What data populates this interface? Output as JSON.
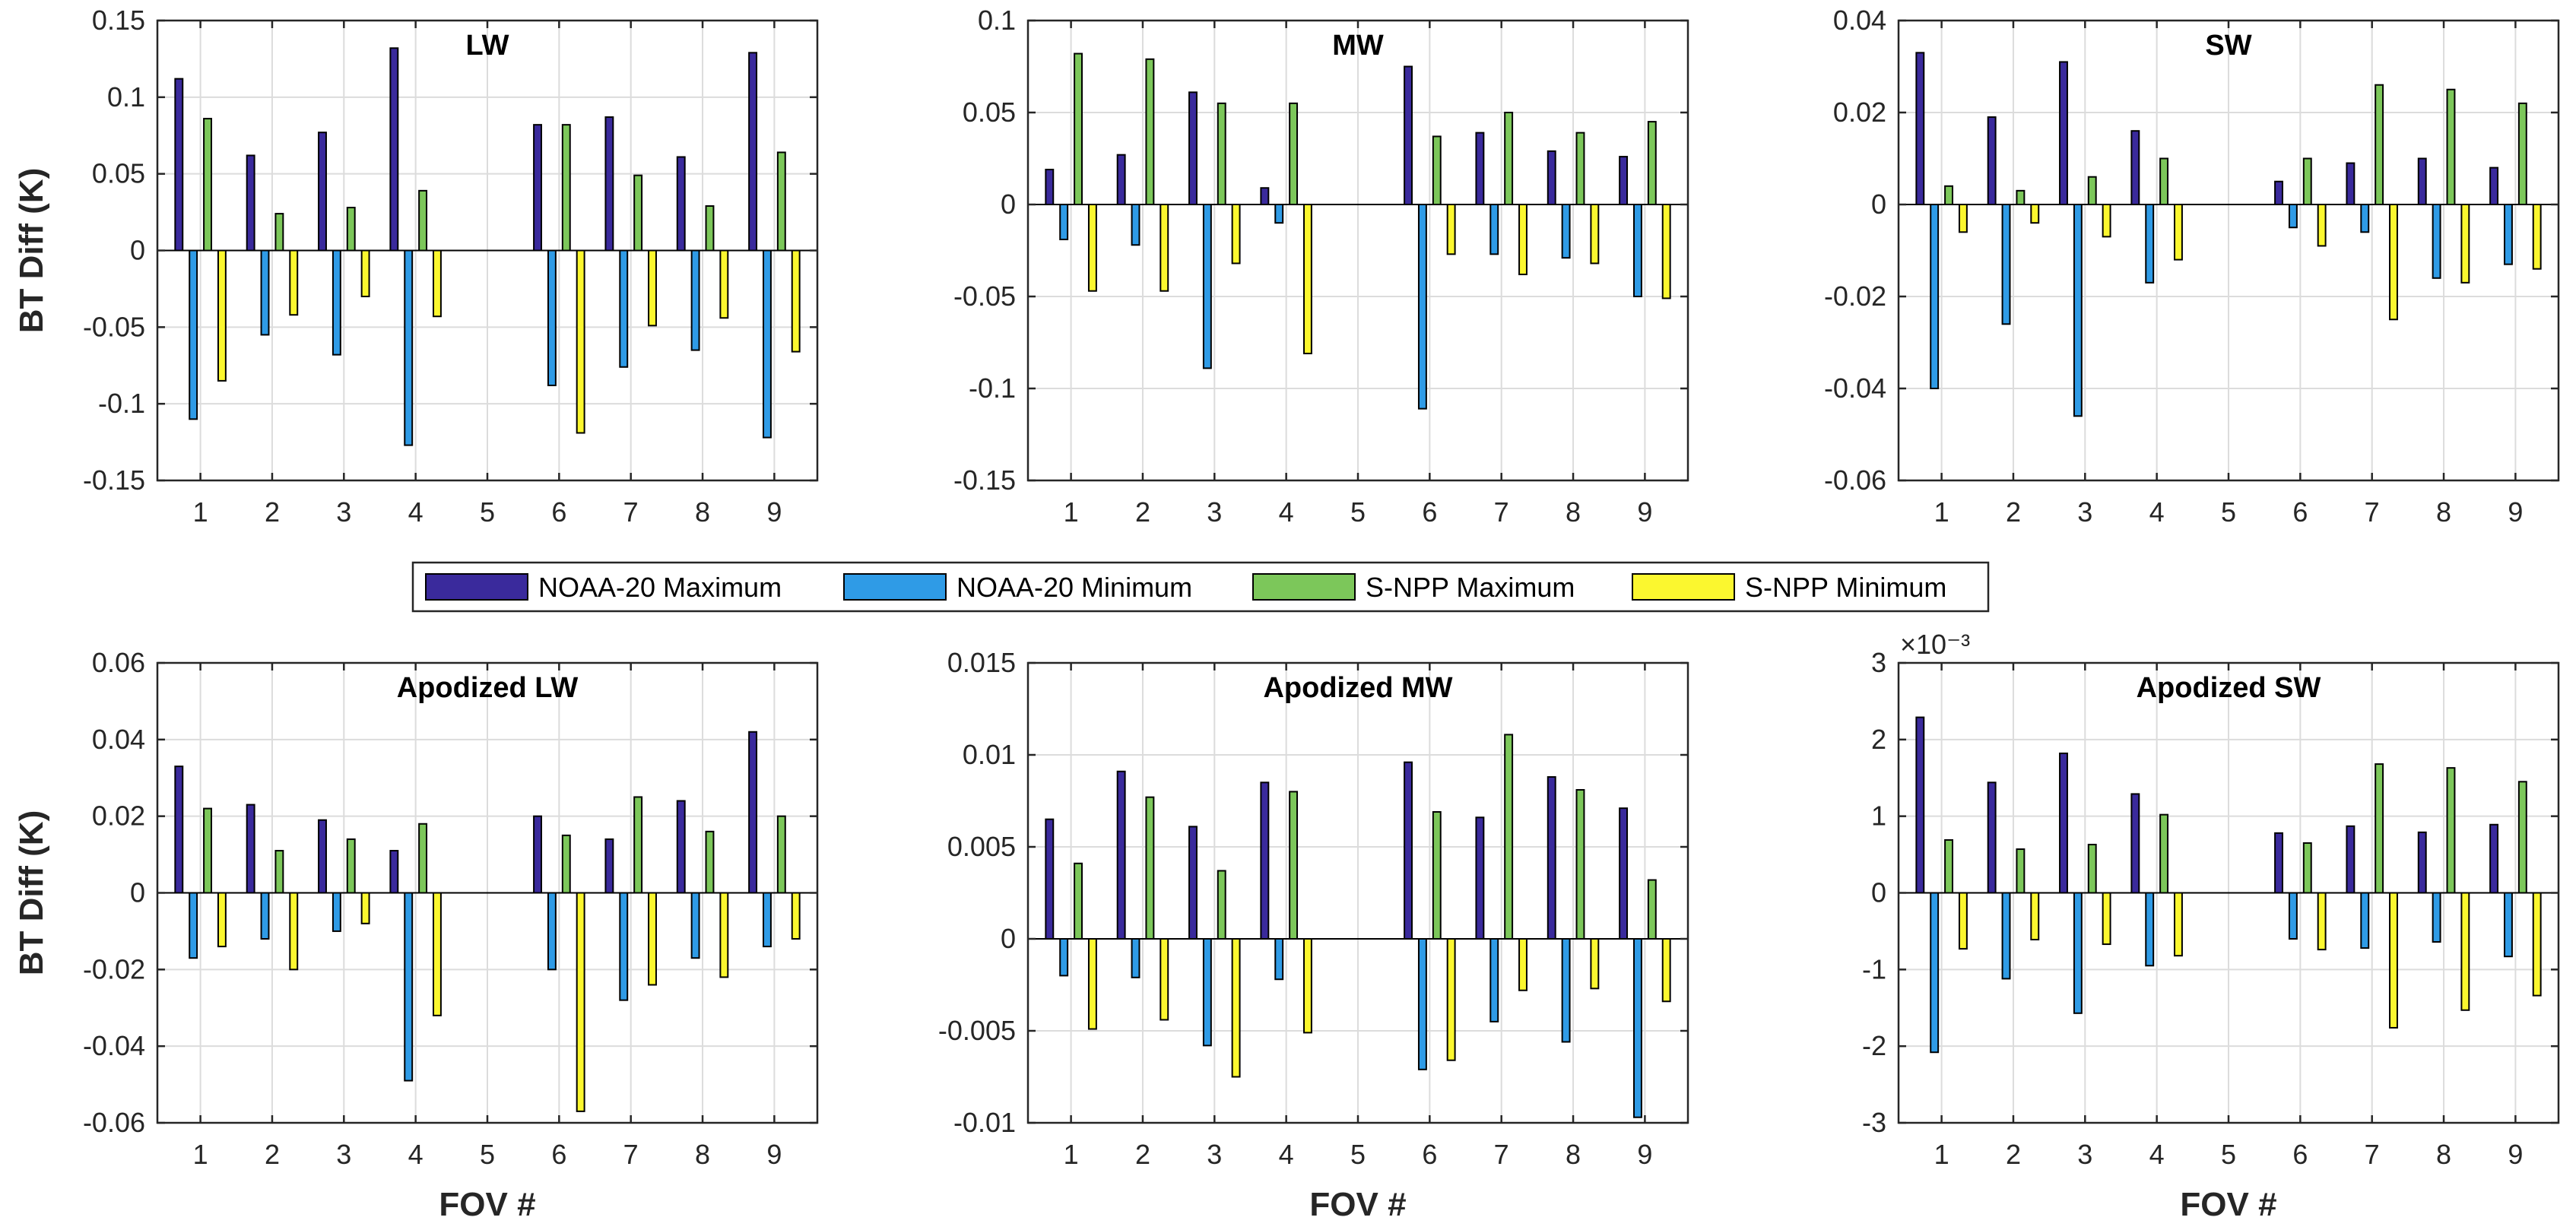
{
  "legend": [
    {
      "label": "NOAA-20 Maximum",
      "color": "#3a2a9c"
    },
    {
      "label": "NOAA-20 Minimum",
      "color": "#2f9be6"
    },
    {
      "label": "S-NPP Maximum",
      "color": "#7cc75a"
    },
    {
      "label": "S-NPP Minimum",
      "color": "#fbf72f"
    }
  ],
  "chart_data": [
    {
      "type": "bar",
      "title": "LW",
      "ylabel": "BT Diff (K)",
      "xlabel": "",
      "categories": [
        "1",
        "2",
        "3",
        "4",
        "5",
        "6",
        "7",
        "8",
        "9"
      ],
      "ylim": [
        -0.15,
        0.15
      ],
      "yticks": [
        -0.15,
        -0.1,
        -0.05,
        0,
        0.05,
        0.1,
        0.15
      ],
      "ytick_labels": [
        "-0.15",
        "-0.1",
        "-0.05",
        "0",
        "0.05",
        "0.1",
        "0.15"
      ],
      "exponent_label": "",
      "series": [
        {
          "name": "NOAA-20 Maximum",
          "values": [
            0.112,
            0.062,
            0.077,
            0.132,
            null,
            0.082,
            0.087,
            0.061,
            0.129
          ]
        },
        {
          "name": "NOAA-20 Minimum",
          "values": [
            -0.11,
            -0.055,
            -0.068,
            -0.127,
            null,
            -0.088,
            -0.076,
            -0.065,
            -0.122
          ]
        },
        {
          "name": "S-NPP Maximum",
          "values": [
            0.086,
            0.024,
            0.028,
            0.039,
            null,
            0.082,
            0.049,
            0.029,
            0.064
          ]
        },
        {
          "name": "S-NPP Minimum",
          "values": [
            -0.085,
            -0.042,
            -0.03,
            -0.043,
            null,
            -0.119,
            -0.049,
            -0.044,
            -0.066
          ]
        }
      ]
    },
    {
      "type": "bar",
      "title": "MW",
      "ylabel": "",
      "xlabel": "",
      "categories": [
        "1",
        "2",
        "3",
        "4",
        "5",
        "6",
        "7",
        "8",
        "9"
      ],
      "ylim": [
        -0.15,
        0.1
      ],
      "yticks": [
        -0.15,
        -0.1,
        -0.05,
        0,
        0.05,
        0.1
      ],
      "ytick_labels": [
        "-0.15",
        "-0.1",
        "-0.05",
        "0",
        "0.05",
        "0.1"
      ],
      "exponent_label": "",
      "series": [
        {
          "name": "NOAA-20 Maximum",
          "values": [
            0.019,
            0.027,
            0.061,
            0.009,
            null,
            0.075,
            0.039,
            0.029,
            0.026
          ]
        },
        {
          "name": "NOAA-20 Minimum",
          "values": [
            -0.019,
            -0.022,
            -0.089,
            -0.01,
            null,
            -0.111,
            -0.027,
            -0.029,
            -0.05
          ]
        },
        {
          "name": "S-NPP Maximum",
          "values": [
            0.082,
            0.079,
            0.055,
            0.055,
            null,
            0.037,
            0.05,
            0.039,
            0.045
          ]
        },
        {
          "name": "S-NPP Minimum",
          "values": [
            -0.047,
            -0.047,
            -0.032,
            -0.081,
            null,
            -0.027,
            -0.038,
            -0.032,
            -0.051
          ]
        }
      ]
    },
    {
      "type": "bar",
      "title": "SW",
      "ylabel": "",
      "xlabel": "",
      "categories": [
        "1",
        "2",
        "3",
        "4",
        "5",
        "6",
        "7",
        "8",
        "9"
      ],
      "ylim": [
        -0.06,
        0.04
      ],
      "yticks": [
        -0.06,
        -0.04,
        -0.02,
        0,
        0.02,
        0.04
      ],
      "ytick_labels": [
        "-0.06",
        "-0.04",
        "-0.02",
        "0",
        "0.02",
        "0.04"
      ],
      "exponent_label": "",
      "series": [
        {
          "name": "NOAA-20 Maximum",
          "values": [
            0.033,
            0.019,
            0.031,
            0.016,
            null,
            0.005,
            0.009,
            0.01,
            0.008
          ]
        },
        {
          "name": "NOAA-20 Minimum",
          "values": [
            -0.04,
            -0.026,
            -0.046,
            -0.017,
            null,
            -0.005,
            -0.006,
            -0.016,
            -0.013
          ]
        },
        {
          "name": "S-NPP Maximum",
          "values": [
            0.004,
            0.003,
            0.006,
            0.01,
            null,
            0.01,
            0.026,
            0.025,
            0.022
          ]
        },
        {
          "name": "S-NPP Minimum",
          "values": [
            -0.006,
            -0.004,
            -0.007,
            -0.012,
            null,
            -0.009,
            -0.025,
            -0.017,
            -0.014
          ]
        }
      ]
    },
    {
      "type": "bar",
      "title": "Apodized LW",
      "ylabel": "BT Diff (K)",
      "xlabel": "FOV #",
      "categories": [
        "1",
        "2",
        "3",
        "4",
        "5",
        "6",
        "7",
        "8",
        "9"
      ],
      "ylim": [
        -0.06,
        0.06
      ],
      "yticks": [
        -0.06,
        -0.04,
        -0.02,
        0,
        0.02,
        0.04,
        0.06
      ],
      "ytick_labels": [
        "-0.06",
        "-0.04",
        "-0.02",
        "0",
        "0.02",
        "0.04",
        "0.06"
      ],
      "exponent_label": "",
      "series": [
        {
          "name": "NOAA-20 Maximum",
          "values": [
            0.033,
            0.023,
            0.019,
            0.011,
            null,
            0.02,
            0.014,
            0.024,
            0.042
          ]
        },
        {
          "name": "NOAA-20 Minimum",
          "values": [
            -0.017,
            -0.012,
            -0.01,
            -0.049,
            null,
            -0.02,
            -0.028,
            -0.017,
            -0.014
          ]
        },
        {
          "name": "S-NPP Maximum",
          "values": [
            0.022,
            0.011,
            0.014,
            0.018,
            null,
            0.015,
            0.025,
            0.016,
            0.02
          ]
        },
        {
          "name": "S-NPP Minimum",
          "values": [
            -0.014,
            -0.02,
            -0.008,
            -0.032,
            null,
            -0.057,
            -0.024,
            -0.022,
            -0.012
          ]
        }
      ]
    },
    {
      "type": "bar",
      "title": "Apodized MW",
      "ylabel": "",
      "xlabel": "FOV #",
      "categories": [
        "1",
        "2",
        "3",
        "4",
        "5",
        "6",
        "7",
        "8",
        "9"
      ],
      "ylim": [
        -0.01,
        0.015
      ],
      "yticks": [
        -0.01,
        -0.005,
        0,
        0.005,
        0.01,
        0.015
      ],
      "ytick_labels": [
        "-0.01",
        "-0.005",
        "0",
        "0.005",
        "0.01",
        "0.015"
      ],
      "exponent_label": "",
      "series": [
        {
          "name": "NOAA-20 Maximum",
          "values": [
            0.0065,
            0.0091,
            0.0061,
            0.0085,
            null,
            0.0096,
            0.0066,
            0.0088,
            0.0071
          ]
        },
        {
          "name": "NOAA-20 Minimum",
          "values": [
            -0.002,
            -0.0021,
            -0.0058,
            -0.0022,
            null,
            -0.0071,
            -0.0045,
            -0.0056,
            -0.0097
          ]
        },
        {
          "name": "S-NPP Maximum",
          "values": [
            0.0041,
            0.0077,
            0.0037,
            0.008,
            null,
            0.0069,
            0.0111,
            0.0081,
            0.0032
          ]
        },
        {
          "name": "S-NPP Minimum",
          "values": [
            -0.0049,
            -0.0044,
            -0.0075,
            -0.0051,
            null,
            -0.0066,
            -0.0028,
            -0.0027,
            -0.0034
          ]
        }
      ]
    },
    {
      "type": "bar",
      "title": "Apodized SW",
      "ylabel": "",
      "xlabel": "FOV #",
      "categories": [
        "1",
        "2",
        "3",
        "4",
        "5",
        "6",
        "7",
        "8",
        "9"
      ],
      "ylim": [
        -3,
        3
      ],
      "yticks": [
        -3,
        -2,
        -1,
        0,
        1,
        2,
        3
      ],
      "ytick_labels": [
        "-3",
        "-2",
        "-1",
        "0",
        "1",
        "2",
        "3"
      ],
      "exponent_label": "×10⁻³",
      "series": [
        {
          "name": "NOAA-20 Maximum",
          "values": [
            2.29,
            1.44,
            1.82,
            1.29,
            null,
            0.78,
            0.87,
            0.79,
            0.89
          ]
        },
        {
          "name": "NOAA-20 Minimum",
          "values": [
            -2.08,
            -1.12,
            -1.57,
            -0.95,
            null,
            -0.6,
            -0.72,
            -0.64,
            -0.83
          ]
        },
        {
          "name": "S-NPP Maximum",
          "values": [
            0.69,
            0.57,
            0.63,
            1.02,
            null,
            0.65,
            1.68,
            1.63,
            1.45
          ]
        },
        {
          "name": "S-NPP Minimum",
          "values": [
            -0.73,
            -0.61,
            -0.67,
            -0.82,
            null,
            -0.74,
            -1.76,
            -1.53,
            -1.34
          ]
        }
      ]
    }
  ]
}
